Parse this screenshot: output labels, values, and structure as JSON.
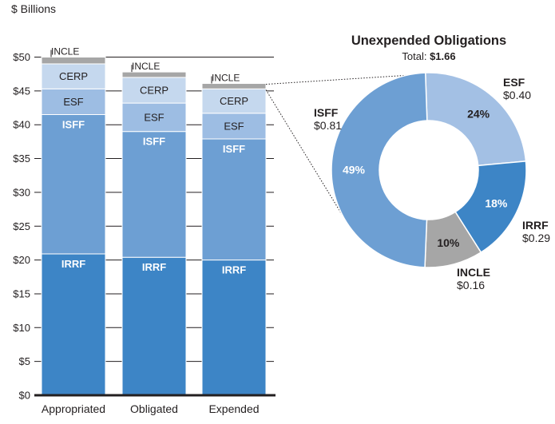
{
  "chart_data": [
    {
      "type": "bar",
      "stacked": true,
      "unit_label": "$ Billions",
      "categories": [
        "Appropriated",
        "Obligated",
        "Expended"
      ],
      "ylim": [
        0,
        55
      ],
      "y_ticks": [
        0,
        5,
        10,
        15,
        20,
        25,
        30,
        35,
        40,
        45,
        50
      ],
      "y_tick_labels": [
        "$0",
        "$5",
        "$10",
        "$15",
        "$20",
        "$25",
        "$30",
        "$35",
        "$40",
        "$45",
        "$50"
      ],
      "grid": true,
      "series": [
        {
          "name": "IRRF",
          "values": [
            20.9,
            20.4,
            20.0
          ],
          "color": "#3d85c6"
        },
        {
          "name": "ISFF",
          "values": [
            20.6,
            18.6,
            17.9
          ],
          "color": "#6d9fd3"
        },
        {
          "name": "ESF",
          "values": [
            3.8,
            4.2,
            3.8
          ],
          "color": "#9dbde3"
        },
        {
          "name": "CERP",
          "values": [
            3.7,
            3.8,
            3.6
          ],
          "color": "#c5d8ee"
        },
        {
          "name": "INCLE",
          "values": [
            1.0,
            0.8,
            0.8
          ],
          "color": "#a6a6a6"
        }
      ]
    },
    {
      "type": "pie",
      "donut": true,
      "title": "Unexpended Obligations",
      "subtitle_prefix": "Total: ",
      "subtitle_value": "$1.66",
      "slices": [
        {
          "name": "ESF",
          "value": 0.4,
          "value_label": "$0.40",
          "percent_label": "24%",
          "color": "#a3c0e4"
        },
        {
          "name": "IRRF",
          "value": 0.29,
          "value_label": "$0.29",
          "percent_label": "18%",
          "color": "#3d85c6"
        },
        {
          "name": "INCLE",
          "value": 0.16,
          "value_label": "$0.16",
          "percent_label": "10%",
          "color": "#a6a6a6"
        },
        {
          "name": "ISFF",
          "value": 0.81,
          "value_label": "$0.81",
          "percent_label": "49%",
          "color": "#6d9fd3"
        }
      ]
    }
  ]
}
